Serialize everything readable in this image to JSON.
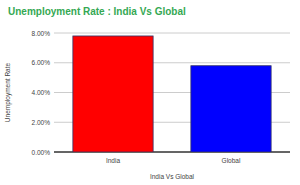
{
  "chart_data": {
    "type": "bar",
    "title": "Unemployment Rate :  India Vs Global",
    "x_label": "India Vs Global",
    "y_label": "Unemployment Rate",
    "categories": [
      "India",
      "Global"
    ],
    "values": [
      7.8,
      5.8
    ],
    "colors": [
      "#ff0000",
      "#0000ff"
    ],
    "ylim": [
      0,
      8
    ],
    "yticks": [
      {
        "value": 0,
        "label": "0.00%"
      },
      {
        "value": 2,
        "label": "2.00%"
      },
      {
        "value": 4,
        "label": "4.00%"
      },
      {
        "value": 6,
        "label": "6.00%"
      },
      {
        "value": 8,
        "label": "8.00%"
      }
    ],
    "grid": true
  }
}
